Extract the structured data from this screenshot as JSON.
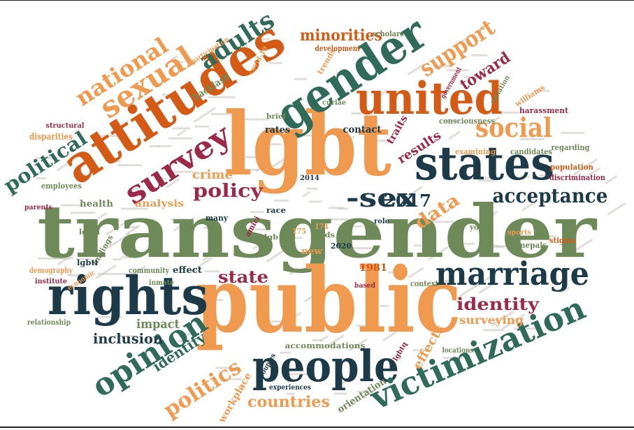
{
  "title": "Word cloud",
  "palette": {
    "sage": "#6e8a58",
    "orange": "#ef9a4f",
    "rust": "#d45b16",
    "teal": "#2f6b58",
    "navy": "#1c3a48",
    "wine": "#9b2a49",
    "faint": "#c9c2bb"
  },
  "words": [
    {
      "text": "transgender",
      "color": "sage"
    },
    {
      "text": "public",
      "color": "orange"
    },
    {
      "text": "lgbt",
      "color": "orange"
    },
    {
      "text": "attitudes",
      "color": "rust"
    },
    {
      "text": "gender",
      "color": "teal"
    },
    {
      "text": "united",
      "color": "rust"
    },
    {
      "text": "states",
      "color": "navy"
    },
    {
      "text": "rights",
      "color": "navy"
    },
    {
      "text": "people",
      "color": "navy"
    },
    {
      "text": "marriage",
      "color": "navy"
    },
    {
      "text": "victimization",
      "color": "teal"
    },
    {
      "text": "opinion",
      "color": "teal"
    },
    {
      "text": "survey",
      "color": "wine"
    },
    {
      "text": "sexual",
      "color": "orange"
    },
    {
      "text": "national",
      "color": "orange"
    },
    {
      "text": "adults",
      "color": "teal"
    },
    {
      "text": "acceptance",
      "color": "navy"
    },
    {
      "text": "social",
      "color": "orange"
    },
    {
      "text": "support",
      "color": "orange"
    },
    {
      "text": "political",
      "color": "teal"
    },
    {
      "text": "-sex",
      "color": "navy"
    },
    {
      "text": "politics",
      "color": "orange"
    },
    {
      "text": "policy",
      "color": "wine"
    },
    {
      "text": "identity",
      "color": "wine"
    },
    {
      "text": "countries",
      "color": "orange"
    },
    {
      "text": "minorities",
      "color": "rust"
    },
    {
      "text": "state",
      "color": "wine"
    },
    {
      "text": "data",
      "color": "orange"
    },
    {
      "text": "toward",
      "color": "wine"
    },
    {
      "text": "inclusion",
      "color": "navy"
    },
    {
      "text": "identify",
      "color": "teal"
    },
    {
      "text": "impact",
      "color": "sage"
    },
    {
      "text": "surveying",
      "color": "orange"
    },
    {
      "text": "2017",
      "color": "navy"
    },
    {
      "text": "results",
      "color": "wine"
    },
    {
      "text": "effects",
      "color": "orange"
    },
    {
      "text": "crime",
      "color": "orange"
    },
    {
      "text": "analysis",
      "color": "orange"
    },
    {
      "text": "orientation",
      "color": "sage"
    },
    {
      "text": "workplace",
      "color": "orange"
    },
    {
      "text": "accommodations",
      "color": "sage"
    },
    {
      "text": "backlash",
      "color": "sage"
    },
    {
      "text": "contact",
      "color": "navy"
    },
    {
      "text": "traits",
      "color": "wine"
    },
    {
      "text": "harassment",
      "color": "wine"
    },
    {
      "text": "regarding",
      "color": "sage"
    },
    {
      "text": "population",
      "color": "rust"
    },
    {
      "text": "discrimination",
      "color": "wine"
    },
    {
      "text": "consciousness",
      "color": "sage"
    },
    {
      "text": "candidates",
      "color": "sage"
    },
    {
      "text": "examining",
      "color": "orange"
    },
    {
      "text": "williams",
      "color": "orange"
    },
    {
      "text": "structural",
      "color": "wine"
    },
    {
      "text": "disparities",
      "color": "orange"
    },
    {
      "text": "employees",
      "color": "sage"
    },
    {
      "text": "parents",
      "color": "wine"
    },
    {
      "text": "health",
      "color": "sage"
    },
    {
      "text": "legal",
      "color": "sage"
    },
    {
      "text": "findings",
      "color": "sage"
    },
    {
      "text": "lgbti",
      "color": "navy"
    },
    {
      "text": "demography",
      "color": "orange"
    },
    {
      "text": "institute",
      "color": "wine"
    },
    {
      "text": "economic",
      "color": "orange"
    },
    {
      "text": "community",
      "color": "sage"
    },
    {
      "text": "effect",
      "color": "navy"
    },
    {
      "text": "inmate",
      "color": "sage"
    },
    {
      "text": "relationship",
      "color": "sage"
    },
    {
      "text": "many",
      "color": "navy"
    },
    {
      "text": "race",
      "color": "navy"
    },
    {
      "text": "lgb",
      "color": "sage"
    },
    {
      "text": "new",
      "color": "orange"
    },
    {
      "text": "1981",
      "color": "rust"
    },
    {
      "text": "2020",
      "color": "navy"
    },
    {
      "text": "2014",
      "color": "navy"
    },
    {
      "text": "174",
      "color": "orange"
    },
    {
      "text": "175",
      "color": "orange"
    },
    {
      "text": "amici",
      "color": "wine"
    },
    {
      "text": "rates",
      "color": "navy"
    },
    {
      "text": "brief",
      "color": "sage"
    },
    {
      "text": "curiae",
      "color": "sage"
    },
    {
      "text": "trends",
      "color": "orange"
    },
    {
      "text": "development",
      "color": "rust"
    },
    {
      "text": "participation",
      "color": "orange"
    },
    {
      "text": "covid-19",
      "color": "orange"
    },
    {
      "text": "scholars",
      "color": "sage"
    },
    {
      "text": "government",
      "color": "wine"
    },
    {
      "text": "variation",
      "color": "sage"
    },
    {
      "text": "youth",
      "color": "sage"
    },
    {
      "text": "sports",
      "color": "orange"
    },
    {
      "text": "nepals",
      "color": "sage"
    },
    {
      "text": "stigma",
      "color": "rust"
    },
    {
      "text": "based",
      "color": "wine"
    },
    {
      "text": "context",
      "color": "sage"
    },
    {
      "text": "locations",
      "color": "sage"
    },
    {
      "text": "experiences",
      "color": "navy"
    },
    {
      "text": "couples",
      "color": "navy"
    },
    {
      "text": "lgbtq",
      "color": "wine"
    },
    {
      "text": "role",
      "color": "navy"
    },
    {
      "text": "ads",
      "color": "sage"
    }
  ]
}
